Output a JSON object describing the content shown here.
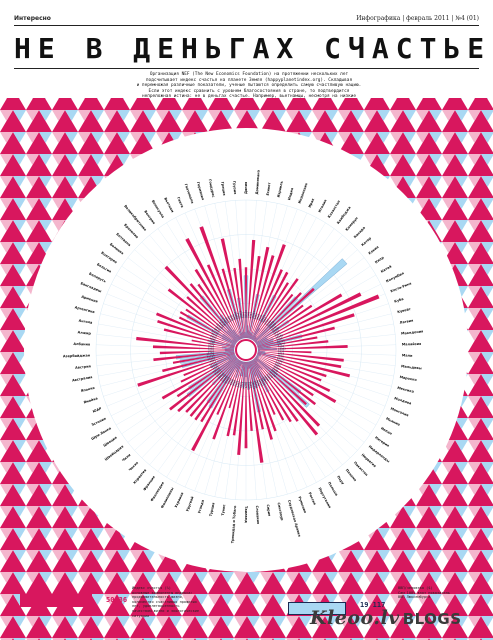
{
  "header": {
    "section": "Интересно",
    "issue": "Инфографика | февраль 2011 | №4 (01)"
  },
  "title": "НЕ В ДЕНЬГАХ СЧАСТЬЕ",
  "intro_lines": [
    "Организация NEF (The New Economics Foundation) на протяжении нескольких лет",
    "подсчитывает индекс счастья на планете Земля (happyplanetindex.org). Складывая",
    "и перемножая различные показатели, ученые пытаются определить самую счастливую нацию.",
    "Если этот индекс сравнить с уровнем благосостояния в стране, то подтвердится",
    "непреложная истина: не в деньгах счастье. Например, вьетнамцы, несмотря на низкие",
    "доходы, в 2 раза счастливее жителей США."
  ],
  "colors": {
    "pink": "#d8175e",
    "blue": "#a9d8f3",
    "navy": "#1b2a52",
    "text": "#111111"
  },
  "chart_data": {
    "type": "radial-bar",
    "series": [
      {
        "name": "Индекс счастья (%)",
        "color": "#d8175e"
      },
      {
        "name": "ВВП/человека ($)",
        "color": "#a9d8f3"
      }
    ],
    "categories": [
      "Дания",
      "Доминикана",
      "Египет",
      "Израиль",
      "Индия",
      "Индонезия",
      "Ирак",
      "Италия",
      "Казахстан",
      "Камбоджа",
      "Камерун",
      "Канада",
      "Катар",
      "Кения",
      "Кипр",
      "Китай",
      "Колумбия",
      "Коста-Рика",
      "Куба",
      "Кувейт",
      "Латвия",
      "Македония",
      "Малайзия",
      "Мали",
      "Мальдивы",
      "Марокко",
      "Мексика",
      "Молдова",
      "Монголия",
      "Мьянма",
      "Непал",
      "Нигерия",
      "Нидерланды",
      "Норвегия",
      "Пакистан",
      "Панама",
      "Перу",
      "Польша",
      "Португалия",
      "Россия",
      "Румыния",
      "Саудовская Аравия",
      "Сингапур",
      "Сирия",
      "Словакия",
      "Таиланд",
      "Тринидад и Тобаго",
      "Тунис",
      "Турция",
      "Уганда",
      "Уругвай",
      "Украина",
      "Филиппины",
      "Финляндия",
      "Франция",
      "Хорватия",
      "Чехия",
      "Чили",
      "Швейцария",
      "Швеция",
      "Шри-Ланка",
      "Эстония",
      "ЮАР",
      "Ямайка",
      "Япония",
      "Австралия",
      "Австрия",
      "Азербайджан",
      "Албания",
      "Алжир",
      "Ангола",
      "Аргентина",
      "Армения",
      "Бангладеш",
      "Беларусь",
      "Бельгия",
      "Болгария",
      "Боливия",
      "Ботсвана",
      "Бразилия",
      "Великобритания",
      "Венгрия",
      "Венесуэла",
      "Вьетнам",
      "Гаити",
      "Гватемала",
      "Германия",
      "Гондурас",
      "Греция",
      "Грузия"
    ],
    "happiness": [
      41,
      57,
      48,
      54,
      50,
      58,
      44,
      44,
      39,
      44,
      35,
      39,
      46,
      35,
      39,
      57,
      67,
      76,
      59,
      46,
      35,
      41,
      52,
      31,
      50,
      49,
      55,
      42,
      40,
      47,
      53,
      40,
      44,
      40,
      54,
      57,
      44,
      42,
      39,
      34,
      43,
      47,
      40,
      59,
      40,
      50,
      54,
      43,
      44,
      28,
      48,
      34,
      59,
      42,
      43,
      43,
      43,
      46,
      49,
      41,
      49,
      35,
      32,
      59,
      43,
      36,
      47,
      43,
      47,
      57,
      25,
      42,
      47,
      49,
      36,
      37,
      35,
      50,
      39,
      60,
      43,
      40,
      48,
      66,
      47,
      69,
      42,
      59,
      41,
      46
    ],
    "gdp": [
      36130,
      7203,
      4357,
      25864,
      3452,
      3843,
      2170,
      28529,
      7857,
      2727,
      2299,
      35078,
      70000,
      1240,
      22699,
      6757,
      7304,
      10180,
      9500,
      26321,
      13646,
      7200,
      10882,
      1033,
      4017,
      4555,
      10751,
      2100,
      2107,
      1027,
      1550,
      1128,
      32684,
      41420,
      2370,
      7605,
      6039,
      13847,
      20410,
      10845,
      9060,
      15711,
      29663,
      3808,
      15871,
      8677,
      14603,
      8371,
      8407,
      1454,
      9962,
      6848,
      5137,
      32153,
      30386,
      13042,
      20538,
      12027,
      35633,
      32525,
      4595,
      15478,
      11110,
      4291,
      31267,
      31794,
      33700,
      5016,
      5316,
      7062,
      2335,
      14280,
      4945,
      2053,
      8541,
      32119,
      9032,
      2819,
      12387,
      8402,
      33238,
      17887,
      6632,
      3071,
      1663,
      4568,
      29461,
      3430,
      23381,
      3365
    ]
  },
  "legend": {
    "happiness_value": "50,36",
    "happiness_text": [
      "Индекс счастья (%)",
      "основные компоненты индекса: продолжительность жизни,",
      "количество счастливых прожитых лет, удовлетворенность",
      "качеством жизни и экологические ситуации"
    ],
    "gdp_value": "19 117",
    "gdp_text": [
      "ВВП/человека ($)",
      "Сам 100% взят показатель",
      "ВВП Люксембурга"
    ]
  },
  "watermark": {
    "brand": "Kleoo.lv",
    "suffix": "BLOGS"
  }
}
